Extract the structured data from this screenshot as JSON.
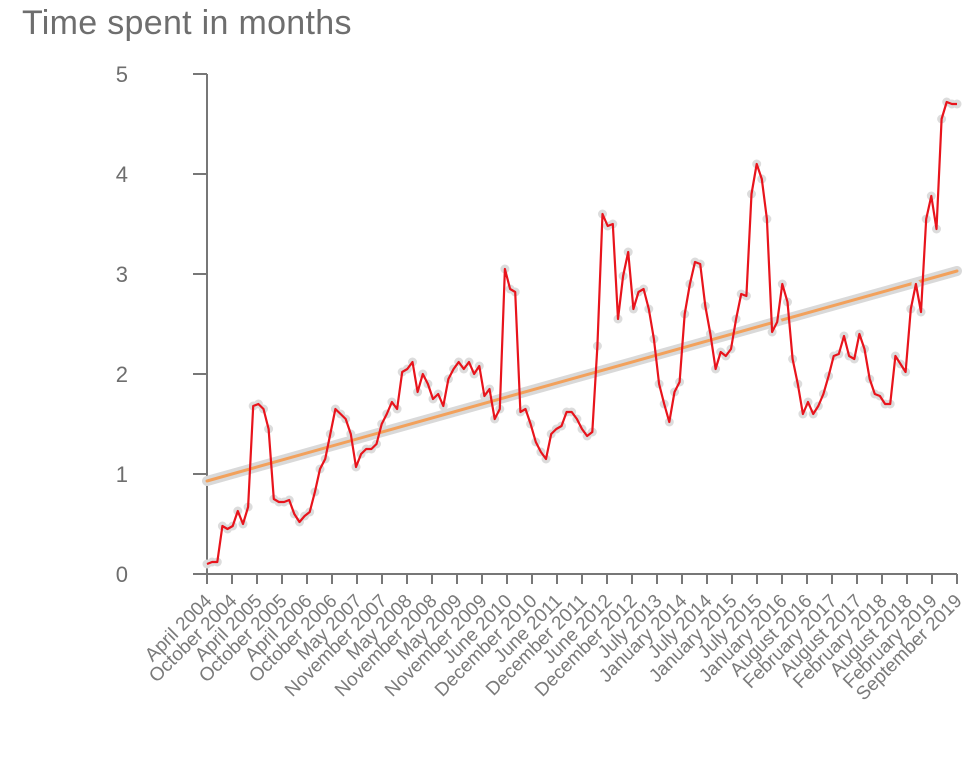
{
  "chart_data": {
    "type": "line",
    "title": "Time spent in months",
    "xlabel": "",
    "ylabel": "",
    "ylim": [
      0,
      5
    ],
    "yticks": [
      "0",
      "1",
      "2",
      "3",
      "4",
      "5"
    ],
    "grid": false,
    "legend": "none",
    "x_tick_labels": [
      "April 2004",
      "October 2004",
      "April 2005",
      "October 2005",
      "April 2006",
      "October 2006",
      "May 2007",
      "November 2007",
      "May 2008",
      "November 2008",
      "May 2009",
      "November 2009",
      "June 2010",
      "December 2010",
      "June 2011",
      "December 2011",
      "June 2012",
      "December 2012",
      "July 2013",
      "January 2014",
      "July 2014",
      "January 2015",
      "July 2015",
      "January 2016",
      "August 2016",
      "February 2017",
      "August 2017",
      "February 2018",
      "August 2018",
      "February 2019",
      "September 2019"
    ],
    "series": [
      {
        "color": "#e8141c",
        "values": [
          0.1,
          0.12,
          0.12,
          0.48,
          0.45,
          0.48,
          0.63,
          0.5,
          0.67,
          1.68,
          1.7,
          1.65,
          1.45,
          0.75,
          0.72,
          0.72,
          0.74,
          0.6,
          0.52,
          0.58,
          0.62,
          0.82,
          1.05,
          1.15,
          1.4,
          1.65,
          1.6,
          1.55,
          1.4,
          1.07,
          1.2,
          1.25,
          1.25,
          1.3,
          1.5,
          1.6,
          1.72,
          1.65,
          2.02,
          2.05,
          2.12,
          1.82,
          2.0,
          1.9,
          1.75,
          1.8,
          1.68,
          1.95,
          2.05,
          2.12,
          2.05,
          2.12,
          2.0,
          2.08,
          1.78,
          1.85,
          1.55,
          1.65,
          3.05,
          2.85,
          2.82,
          1.62,
          1.65,
          1.5,
          1.32,
          1.22,
          1.15,
          1.4,
          1.45,
          1.48,
          1.62,
          1.62,
          1.55,
          1.45,
          1.38,
          1.42,
          2.28,
          3.6,
          3.48,
          3.5,
          2.55,
          2.98,
          3.22,
          2.65,
          2.82,
          2.85,
          2.65,
          2.35,
          1.9,
          1.7,
          1.52,
          1.82,
          1.92,
          2.6,
          2.9,
          3.12,
          3.1,
          2.68,
          2.4,
          2.05,
          2.22,
          2.18,
          2.25,
          2.55,
          2.8,
          2.78,
          3.8,
          4.1,
          3.95,
          3.55,
          2.42,
          2.52,
          2.9,
          2.72,
          2.15,
          1.9,
          1.6,
          1.72,
          1.6,
          1.68,
          1.8,
          1.98,
          2.18,
          2.2,
          2.38,
          2.18,
          2.15,
          2.4,
          2.25,
          1.95,
          1.8,
          1.78,
          1.7,
          1.7,
          2.18,
          2.1,
          2.02,
          2.65,
          2.9,
          2.62,
          3.55,
          3.78,
          3.45,
          4.55,
          4.72,
          4.7,
          4.7
        ]
      },
      {
        "color": "#f2a15c",
        "values": [
          0.93,
          3.03
        ]
      }
    ]
  }
}
